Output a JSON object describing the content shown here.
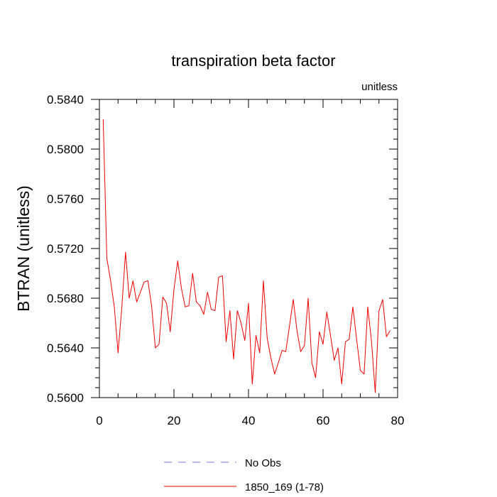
{
  "chart_data": {
    "type": "line",
    "title": "transpiration beta factor",
    "units_label": "unitless",
    "ylabel": "BTRAN  (unitless)",
    "xlabel": "",
    "xlim": [
      0,
      80
    ],
    "ylim": [
      0.56,
      0.584
    ],
    "x_ticks": [
      0,
      20,
      40,
      60,
      80
    ],
    "x_tick_labels": [
      "0",
      "20",
      "40",
      "60",
      "80"
    ],
    "y_ticks": [
      0.56,
      0.564,
      0.568,
      0.572,
      0.576,
      0.58,
      0.584
    ],
    "y_tick_labels": [
      "0.5600",
      "0.5640",
      "0.5680",
      "0.5720",
      "0.5760",
      "0.5800",
      "0.5840"
    ],
    "grid": false,
    "legend_position": "bottom",
    "legend": [
      {
        "label": "No Obs",
        "color": "#7777ee",
        "dash": "dashed"
      },
      {
        "label": "1850_169 (1-78)",
        "color": "#ee0000",
        "dash": "solid"
      }
    ],
    "series": [
      {
        "name": "1850_169 (1-78)",
        "color": "#ee0000",
        "x": [
          1,
          2,
          3,
          4,
          5,
          6,
          7,
          8,
          9,
          10,
          11,
          12,
          13,
          14,
          15,
          16,
          17,
          18,
          19,
          20,
          21,
          22,
          23,
          24,
          25,
          26,
          27,
          28,
          29,
          30,
          31,
          32,
          33,
          34,
          35,
          36,
          37,
          38,
          39,
          40,
          41,
          42,
          43,
          44,
          45,
          46,
          47,
          48,
          49,
          50,
          51,
          52,
          53,
          54,
          55,
          56,
          57,
          58,
          59,
          60,
          61,
          62,
          63,
          64,
          65,
          66,
          67,
          68,
          69,
          70,
          71,
          72,
          73,
          74,
          75,
          76,
          77,
          78
        ],
        "values": [
          0.5824,
          0.5712,
          0.5694,
          0.5673,
          0.5636,
          0.5672,
          0.5717,
          0.568,
          0.5694,
          0.5677,
          0.5685,
          0.5693,
          0.5694,
          0.5674,
          0.564,
          0.5643,
          0.5681,
          0.5676,
          0.5653,
          0.5687,
          0.571,
          0.5688,
          0.5673,
          0.5674,
          0.57,
          0.5677,
          0.5674,
          0.5667,
          0.5685,
          0.5671,
          0.567,
          0.5697,
          0.5698,
          0.5645,
          0.567,
          0.5631,
          0.567,
          0.566,
          0.5646,
          0.5676,
          0.5611,
          0.565,
          0.5636,
          0.5694,
          0.5648,
          0.5632,
          0.5619,
          0.5628,
          0.5638,
          0.5637,
          0.5658,
          0.5679,
          0.5654,
          0.5637,
          0.5642,
          0.568,
          0.5628,
          0.5616,
          0.5653,
          0.5643,
          0.5669,
          0.565,
          0.563,
          0.564,
          0.5611,
          0.5645,
          0.5647,
          0.5673,
          0.5647,
          0.5622,
          0.5619,
          0.5673,
          0.5645,
          0.5604,
          0.567,
          0.5679,
          0.5649,
          0.5654
        ]
      }
    ]
  }
}
